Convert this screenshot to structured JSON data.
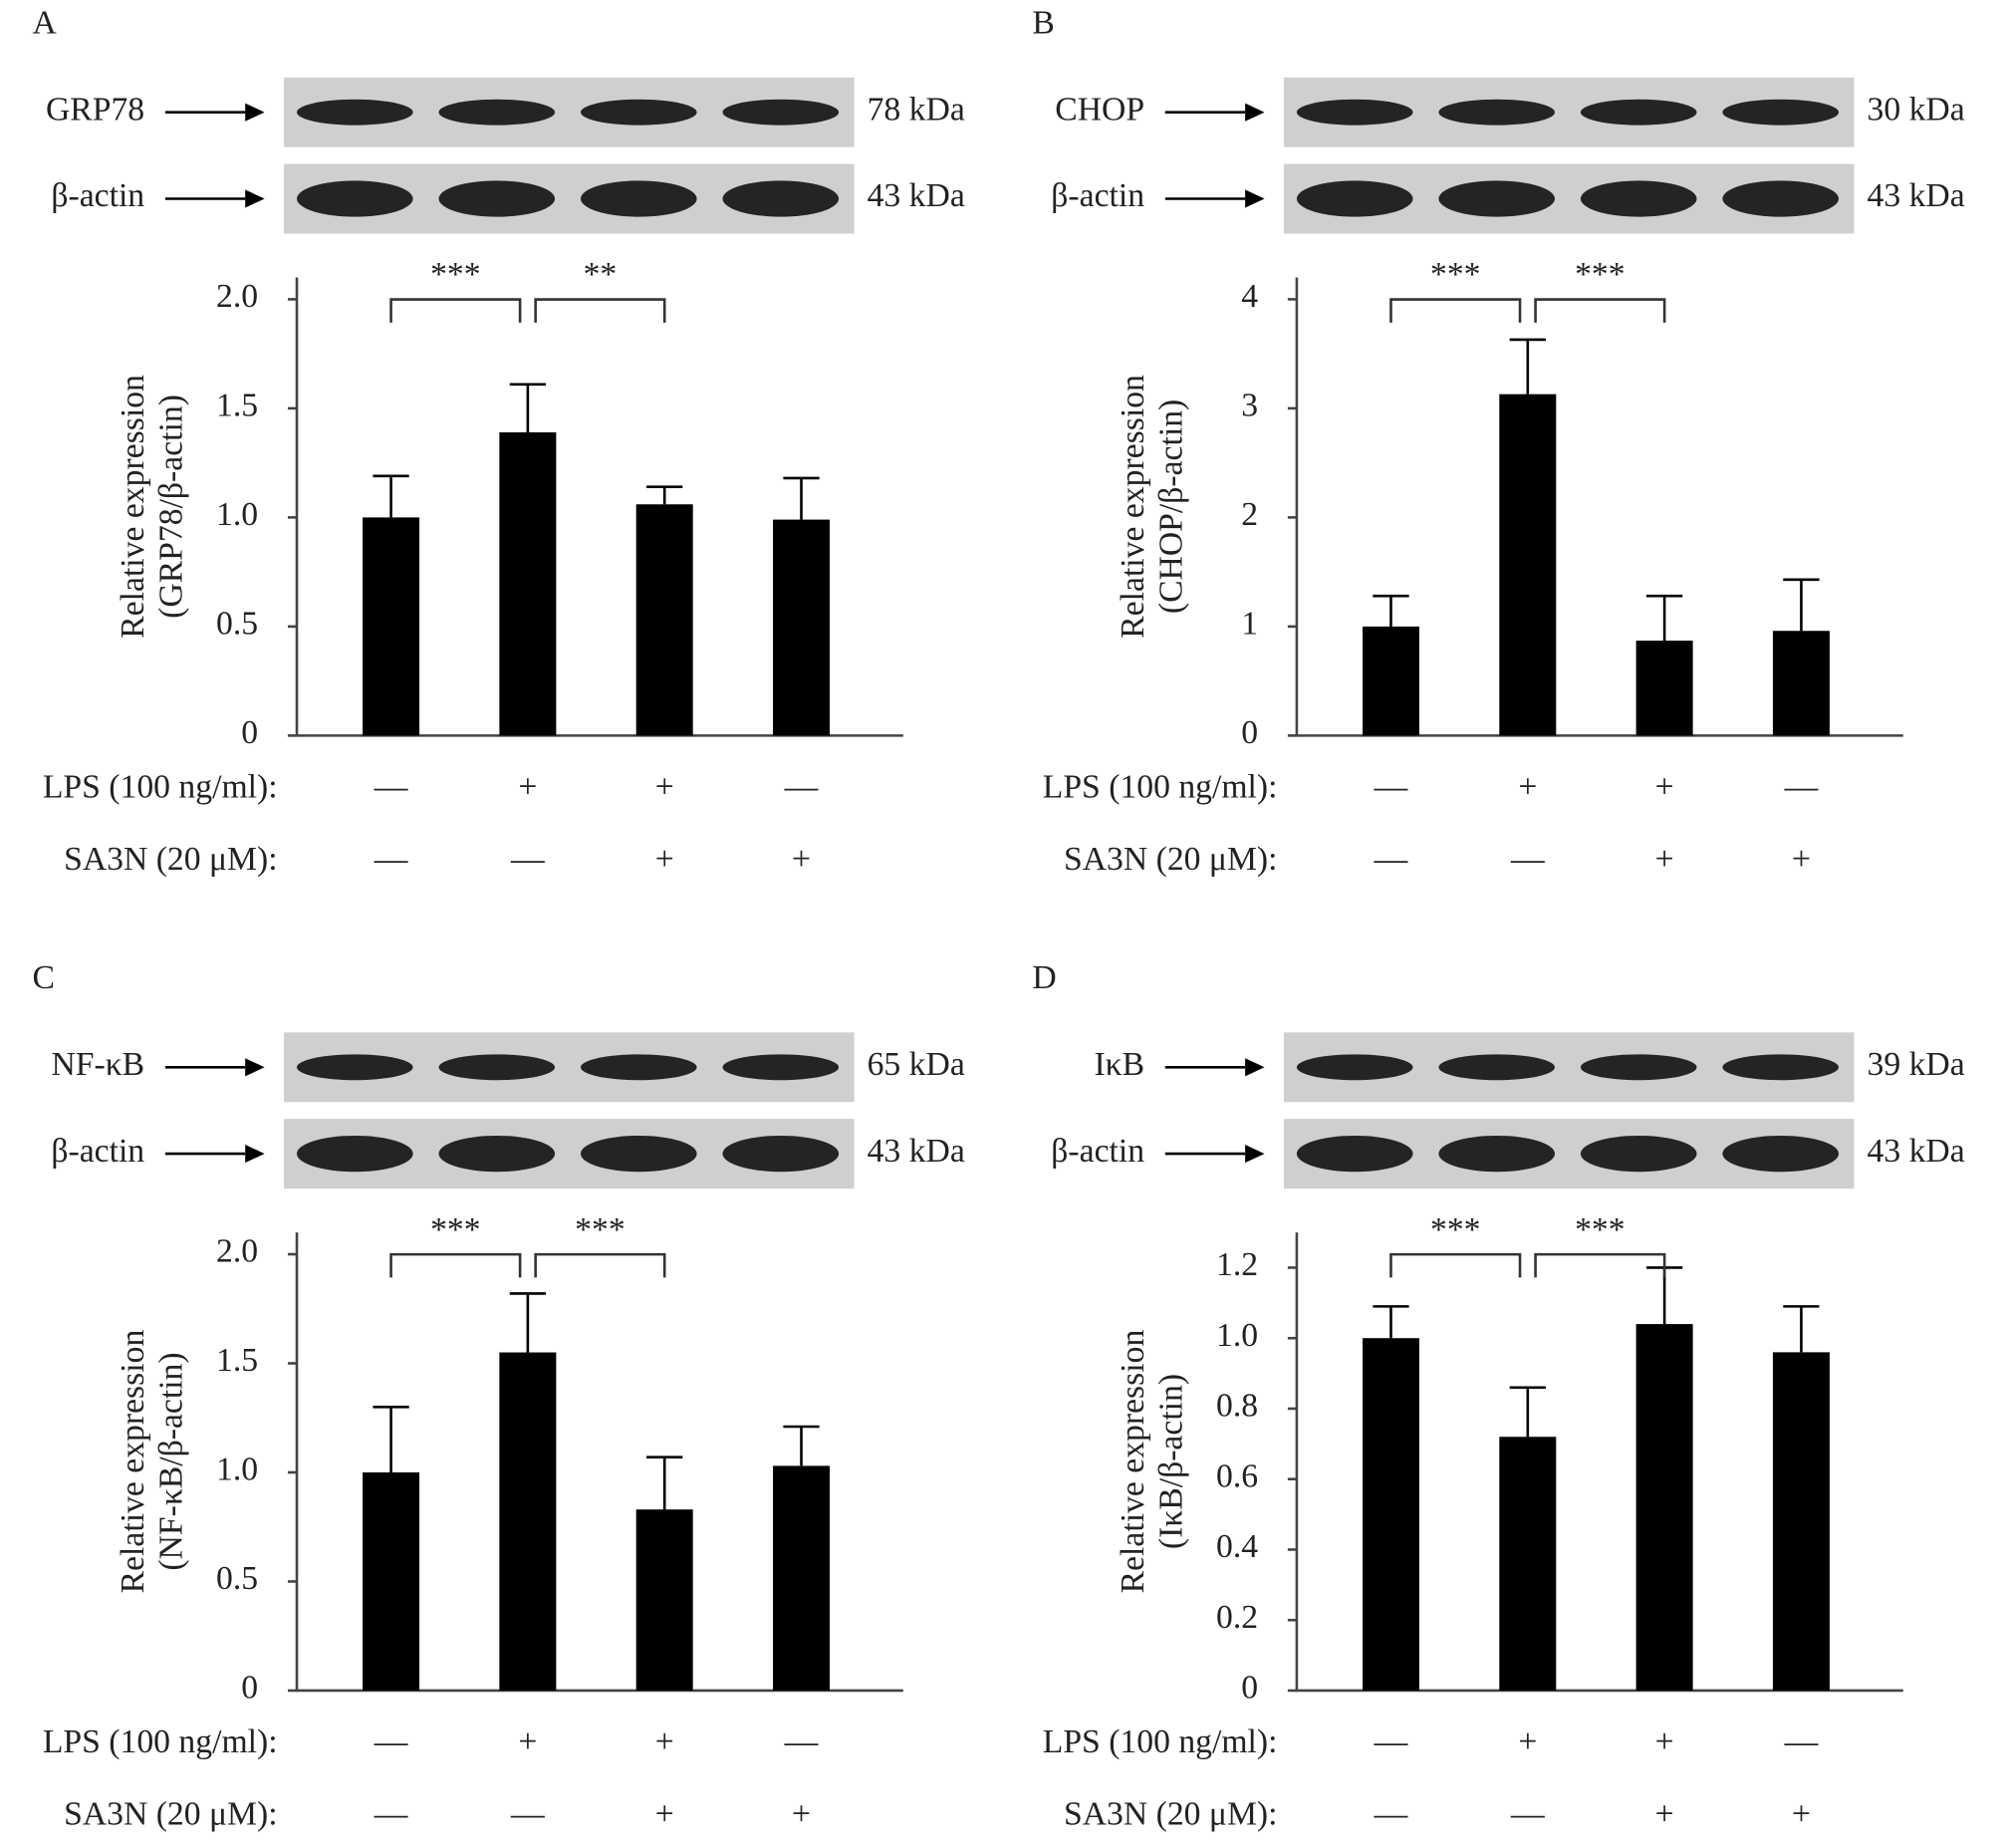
{
  "chart_data": [
    {
      "type": "bar",
      "panel": "A",
      "blots": [
        {
          "label": "GRP78",
          "size": "78 kDa"
        },
        {
          "label": "β-actin",
          "size": "43 kDa"
        }
      ],
      "ylabel": [
        "Relative expression",
        "(GRP78/β-actin)"
      ],
      "values": [
        1.0,
        1.39,
        1.06,
        0.99
      ],
      "errors": [
        0.19,
        0.22,
        0.08,
        0.19
      ],
      "ylim": [
        0,
        2.1
      ],
      "yticks": [
        0,
        0.5,
        {
          "value": 1,
          "label": "1.0"
        },
        1.5,
        {
          "value": 2,
          "label": "2.0"
        }
      ],
      "significance": [
        "***",
        "**"
      ],
      "color": "#000000",
      "conditions": [
        {
          "label": "LPS (100 ng/ml):",
          "signs": [
            "—",
            "+",
            "+",
            "—"
          ]
        },
        {
          "label": "SA3N (20 μM):",
          "signs": [
            "—",
            "—",
            "+",
            "+"
          ]
        }
      ]
    },
    {
      "type": "bar",
      "panel": "B",
      "blots": [
        {
          "label": "CHOP",
          "size": "30 kDa"
        },
        {
          "label": "β-actin",
          "size": "43 kDa"
        }
      ],
      "ylabel": [
        "Relative expression",
        "(CHOP/β-actin)"
      ],
      "values": [
        1.0,
        3.13,
        0.87,
        0.96
      ],
      "errors": [
        0.28,
        0.5,
        0.41,
        0.47
      ],
      "ylim": [
        0,
        4.2
      ],
      "yticks": [
        0,
        1,
        2,
        3,
        4
      ],
      "significance": [
        "***",
        "***"
      ],
      "color": "#000000",
      "conditions": [
        {
          "label": "LPS (100 ng/ml):",
          "signs": [
            "—",
            "+",
            "+",
            "—"
          ]
        },
        {
          "label": "SA3N (20 μM):",
          "signs": [
            "—",
            "—",
            "+",
            "+"
          ]
        }
      ]
    },
    {
      "type": "bar",
      "panel": "C",
      "blots": [
        {
          "label": "NF-κB",
          "size": "65 kDa"
        },
        {
          "label": "β-actin",
          "size": "43 kDa"
        }
      ],
      "ylabel": [
        "Relative expression",
        "(NF-κB/β-actin)"
      ],
      "values": [
        1.0,
        1.55,
        0.83,
        1.03
      ],
      "errors": [
        0.3,
        0.27,
        0.24,
        0.18
      ],
      "ylim": [
        0,
        2.1
      ],
      "yticks": [
        0,
        0.5,
        {
          "value": 1,
          "label": "1.0"
        },
        1.5,
        {
          "value": 2,
          "label": "2.0"
        }
      ],
      "significance": [
        "***",
        "***"
      ],
      "color": "#000000",
      "conditions": [
        {
          "label": "LPS (100 ng/ml):",
          "signs": [
            "—",
            "+",
            "+",
            "—"
          ]
        },
        {
          "label": "SA3N (20 μM):",
          "signs": [
            "—",
            "—",
            "+",
            "+"
          ]
        }
      ]
    },
    {
      "type": "bar",
      "panel": "D",
      "blots": [
        {
          "label": "IκB",
          "size": "39 kDa"
        },
        {
          "label": "β-actin",
          "size": "43 kDa"
        }
      ],
      "ylabel": [
        "Relative expression",
        "(IκB/β-actin)"
      ],
      "values": [
        1.0,
        0.72,
        1.04,
        0.96
      ],
      "errors": [
        0.09,
        0.14,
        0.16,
        0.13
      ],
      "ylim": [
        0,
        1.3
      ],
      "yticks": [
        0,
        0.2,
        0.4,
        0.6,
        0.8,
        {
          "value": 1,
          "label": "1.0"
        },
        1.2
      ],
      "significance": [
        "***",
        "***"
      ],
      "color": "#000000",
      "conditions": [
        {
          "label": "LPS (100 ng/ml):",
          "signs": [
            "—",
            "+",
            "+",
            "—"
          ]
        },
        {
          "label": "SA3N (20 μM):",
          "signs": [
            "—",
            "—",
            "+",
            "+"
          ]
        }
      ]
    }
  ]
}
